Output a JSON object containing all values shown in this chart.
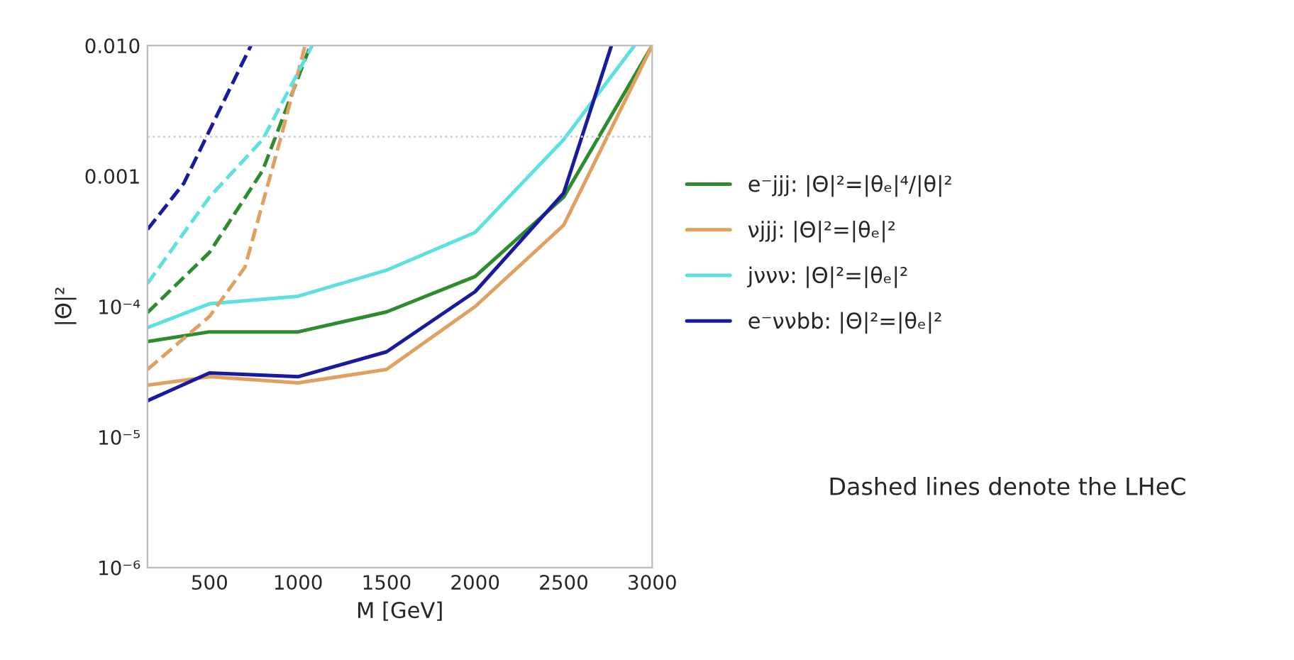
{
  "chart_data": {
    "type": "line",
    "xlabel": "M [GeV]",
    "ylabel": "|Θ|²",
    "log": "y",
    "xlim": [
      150,
      3000
    ],
    "xticks": [
      500,
      1000,
      1500,
      2000,
      2500,
      3000
    ],
    "ylim": [
      1e-06,
      0.01
    ],
    "yticks": [
      {
        "value": 0.01,
        "label": "0.010"
      },
      {
        "value": 0.001,
        "label": "0.001"
      },
      {
        "value": 0.0001,
        "label": "10⁻⁴"
      },
      {
        "value": 1e-05,
        "label": "10⁻⁵"
      },
      {
        "value": 1e-06,
        "label": "10⁻⁶"
      }
    ],
    "grid": false,
    "legend": "right",
    "line_style": "solid",
    "marker": "none",
    "series": [
      {
        "name": "e⁻jjj: |Θ|²=|θₑ|⁴/|θ|²",
        "color": "#2e8b2e",
        "x": [
          150,
          500,
          1000,
          1500,
          2000,
          2500,
          3000
        ],
        "values": [
          5.4e-05,
          6.4e-05,
          6.4e-05,
          9.1e-05,
          0.00017,
          0.00069,
          0.01
        ]
      },
      {
        "name": "νjjj: |Θ|²=|θₑ|²",
        "color": "#e0a060",
        "x": [
          150,
          500,
          1000,
          1500,
          2000,
          2500,
          3000
        ],
        "values": [
          2.5e-05,
          2.9e-05,
          2.6e-05,
          3.3e-05,
          0.0001,
          0.00042,
          0.01
        ]
      },
      {
        "name": "jννν: |Θ|²=|θₑ|²",
        "color": "#5ce0e0",
        "x": [
          150,
          500,
          1000,
          1500,
          2000,
          2500,
          2900
        ],
        "values": [
          6.9e-05,
          0.000105,
          0.00012,
          0.00019,
          0.00037,
          0.0019,
          0.01
        ]
      },
      {
        "name": "e⁻ννbb: |Θ|²=|θₑ|²",
        "color": "#1a1aa0",
        "x": [
          150,
          500,
          1000,
          1500,
          2000,
          2500,
          2770
        ],
        "values": [
          1.9e-05,
          3.1e-05,
          2.9e-05,
          4.5e-05,
          0.00013,
          0.00074,
          0.01
        ]
      },
      {
        "color": "#2e8b2e",
        "line_style": "dashed",
        "x": [
          150,
          500,
          800,
          1070
        ],
        "values": [
          9e-05,
          0.00026,
          0.0011,
          0.01
        ]
      },
      {
        "color": "#e0a060",
        "line_style": "dashed",
        "x": [
          150,
          500,
          700,
          900,
          1040
        ],
        "values": [
          3.3e-05,
          8.4e-05,
          0.0002,
          0.0019,
          0.01
        ]
      },
      {
        "color": "#5ce0e0",
        "line_style": "dashed",
        "x": [
          150,
          500,
          800,
          1080
        ],
        "values": [
          0.00015,
          0.00069,
          0.0019,
          0.01
        ]
      },
      {
        "color": "#1a1aa0",
        "line_style": "dashed",
        "x": [
          150,
          355,
          734
        ],
        "values": [
          0.00039,
          0.00088,
          0.01
        ]
      }
    ],
    "ref_lines": [
      {
        "axis": "y",
        "value": 0.002,
        "color": "#cccccc",
        "line_style": "dotted"
      }
    ],
    "annotations": [
      "Dashed lines denote the LHeC"
    ]
  }
}
